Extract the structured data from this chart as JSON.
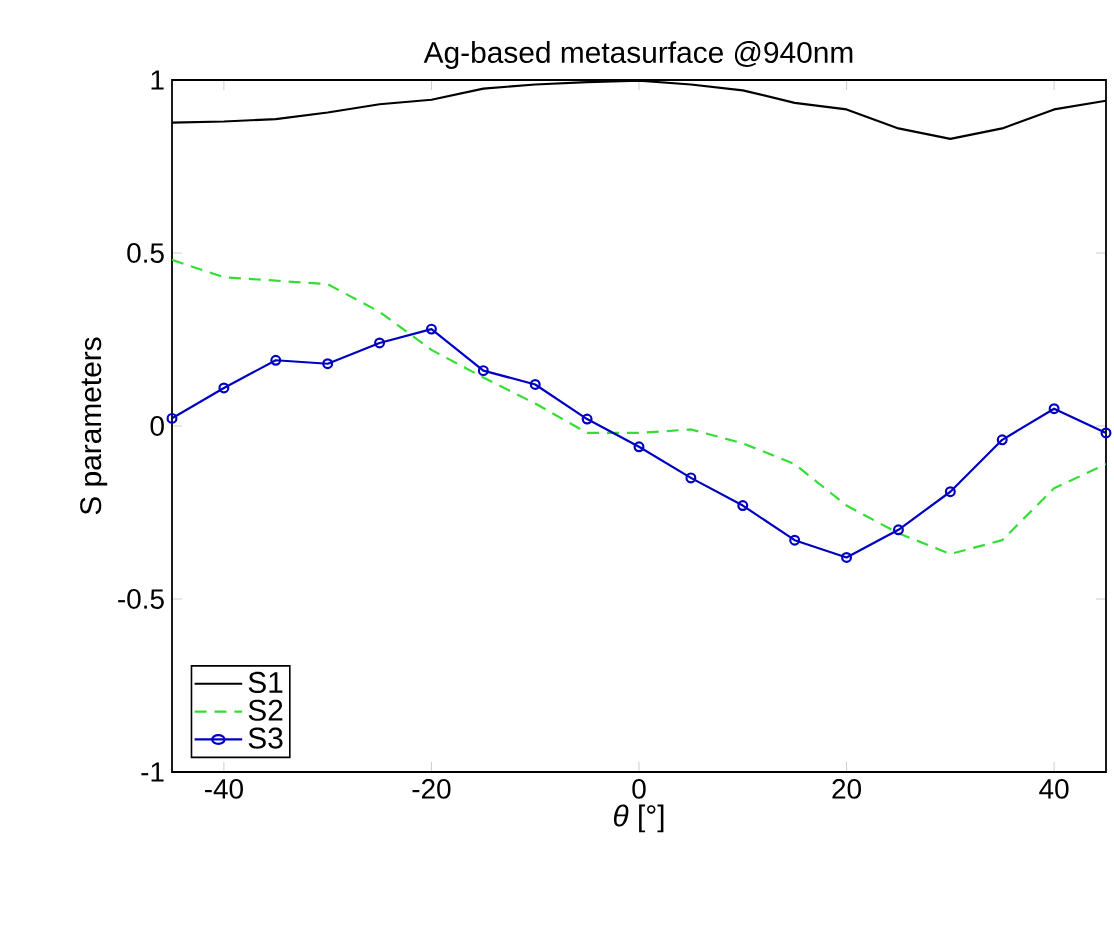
{
  "chart_data": {
    "type": "line",
    "title": "Ag-based metasurface @940nm",
    "xlabel": "*θ* [°]",
    "ylabel": "S parameters",
    "x": [
      -45,
      -40,
      -35,
      -30,
      -25,
      -20,
      -15,
      -10,
      -5,
      0,
      5,
      10,
      15,
      20,
      25,
      30,
      35,
      40,
      45
    ],
    "series": [
      {
        "name": "S1",
        "color": "#000000",
        "line_style": "solid",
        "marker": "none",
        "values": [
          0.877,
          0.88,
          0.887,
          0.906,
          0.93,
          0.943,
          0.975,
          0.987,
          0.994,
          0.998,
          0.987,
          0.97,
          0.934,
          0.915,
          0.86,
          0.83,
          0.86,
          0.915,
          0.94
        ]
      },
      {
        "name": "S2",
        "color": "#33dd33",
        "line_style": "dashed",
        "marker": "none",
        "values": [
          0.48,
          0.43,
          0.42,
          0.41,
          0.33,
          0.22,
          0.14,
          0.065,
          -0.02,
          -0.02,
          -0.01,
          -0.05,
          -0.11,
          -0.23,
          -0.31,
          -0.37,
          -0.33,
          -0.18,
          -0.11
        ]
      },
      {
        "name": "S3",
        "color": "#0000c0",
        "line_style": "solid",
        "marker": "circle",
        "values": [
          0.022,
          0.11,
          0.19,
          0.18,
          0.24,
          0.28,
          0.16,
          0.12,
          0.02,
          -0.06,
          -0.15,
          -0.23,
          -0.33,
          -0.38,
          -0.3,
          -0.19,
          -0.04,
          0.05,
          -0.02
        ]
      }
    ],
    "xlim": [
      -45,
      45
    ],
    "ylim": [
      -1,
      1
    ],
    "xticks": [
      -40,
      -20,
      0,
      20,
      40
    ],
    "yticks": [
      -1,
      -0.5,
      0,
      0.5,
      1
    ],
    "legend": "bottom left"
  }
}
